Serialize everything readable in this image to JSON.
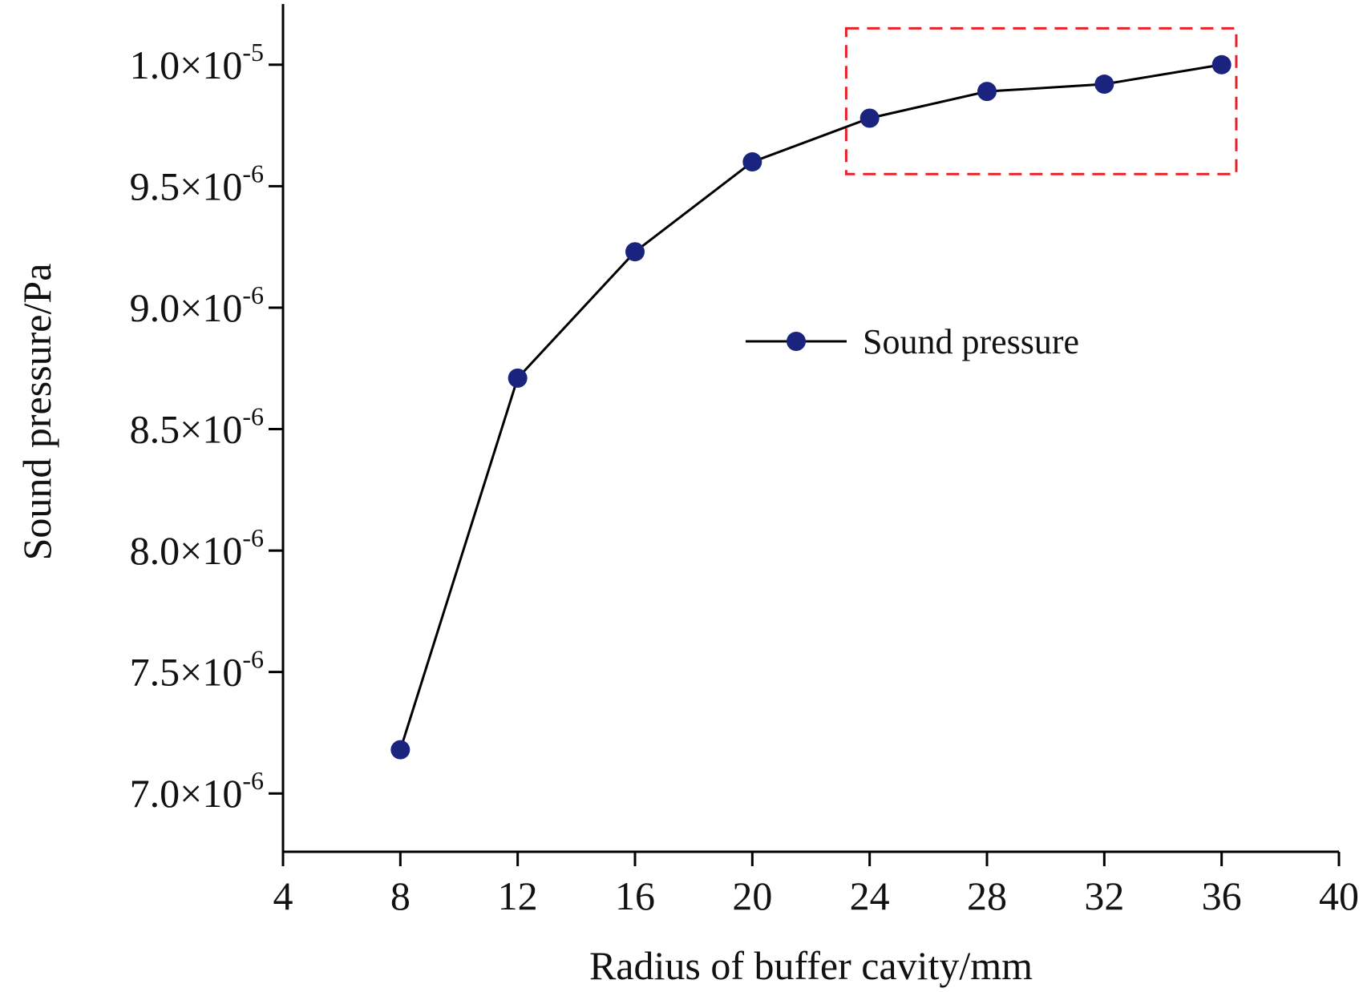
{
  "chart_data": {
    "type": "line",
    "xlabel": "Radius of buffer cavity/mm",
    "ylabel": "Sound pressure/Pa",
    "xlim": [
      4,
      40
    ],
    "ylim": [
      6.76e-06,
      1.025e-05
    ],
    "x_ticks": [
      4,
      8,
      12,
      16,
      20,
      24,
      28,
      32,
      36,
      40
    ],
    "x_tick_labels": [
      "4",
      "8",
      "12",
      "16",
      "20",
      "24",
      "28",
      "32",
      "36",
      "40"
    ],
    "y_ticks": [
      {
        "value": 7e-06,
        "mantissa": "7.0×10",
        "exponent": "-6"
      },
      {
        "value": 7.5e-06,
        "mantissa": "7.5×10",
        "exponent": "-6"
      },
      {
        "value": 8e-06,
        "mantissa": "8.0×10",
        "exponent": "-6"
      },
      {
        "value": 8.5e-06,
        "mantissa": "8.5×10",
        "exponent": "-6"
      },
      {
        "value": 9e-06,
        "mantissa": "9.0×10",
        "exponent": "-6"
      },
      {
        "value": 9.5e-06,
        "mantissa": "9.5×10",
        "exponent": "-6"
      },
      {
        "value": 1e-05,
        "mantissa": "1.0×10",
        "exponent": "-5"
      }
    ],
    "series": [
      {
        "name": "Sound pressure",
        "x": [
          8,
          12,
          16,
          20,
          24,
          28,
          32,
          36
        ],
        "y": [
          7.18e-06,
          8.71e-06,
          9.23e-06,
          9.6e-06,
          9.78e-06,
          9.89e-06,
          9.92e-06,
          1e-05
        ]
      }
    ],
    "highlight_box": {
      "x_range": [
        23.2,
        36.5
      ],
      "y_range": [
        9.55e-06,
        1.015e-05
      ],
      "style": "red dashed"
    },
    "legend_placement": "center-right",
    "grid": false,
    "colors": {
      "series": "#1a237e",
      "line": "#000000",
      "highlight": "#e8202a",
      "axis": "#000000"
    }
  }
}
